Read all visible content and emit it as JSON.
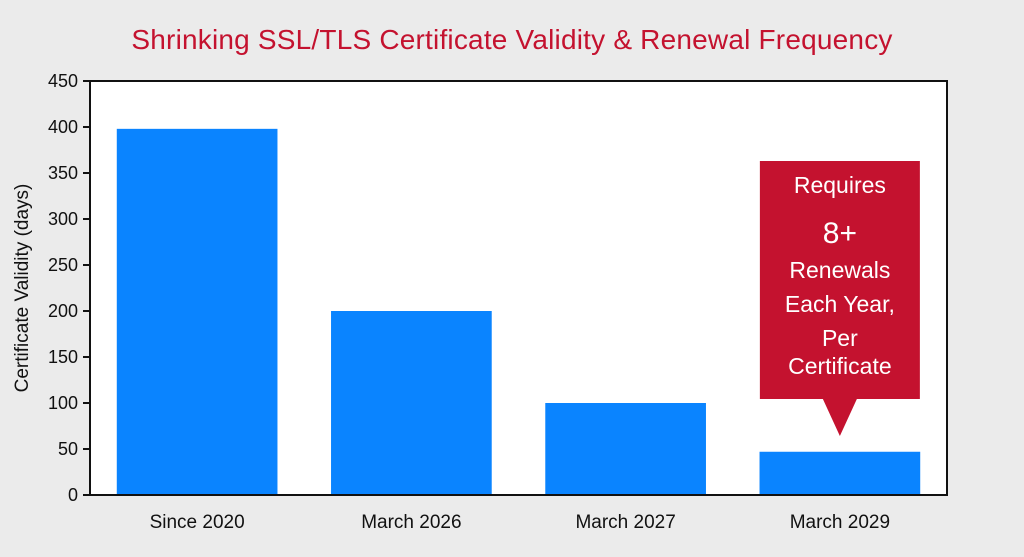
{
  "chart_data": {
    "type": "bar",
    "title": "Shrinking SSL/TLS Certificate Validity & Renewal Frequency",
    "xlabel": "",
    "ylabel": "Certificate Validity (days)",
    "categories": [
      "Since 2020",
      "March 2026",
      "March 2027",
      "March 2029"
    ],
    "values": [
      398,
      200,
      100,
      47
    ],
    "ylim": [
      0,
      450
    ],
    "yticks": [
      0,
      50,
      100,
      150,
      200,
      250,
      300,
      350,
      400,
      450
    ],
    "grid": false,
    "legend": "none",
    "bar_color": "#0a84ff",
    "callout": {
      "target_category": "March 2029",
      "color": "#c4122f",
      "lines": [
        "Requires",
        "8+",
        "Renewals",
        "Each Year,",
        "Per",
        "Certificate"
      ]
    }
  },
  "colors": {
    "background": "#ebebeb",
    "plot_background": "#ffffff",
    "title": "#c4122f",
    "axis": "#111111"
  }
}
